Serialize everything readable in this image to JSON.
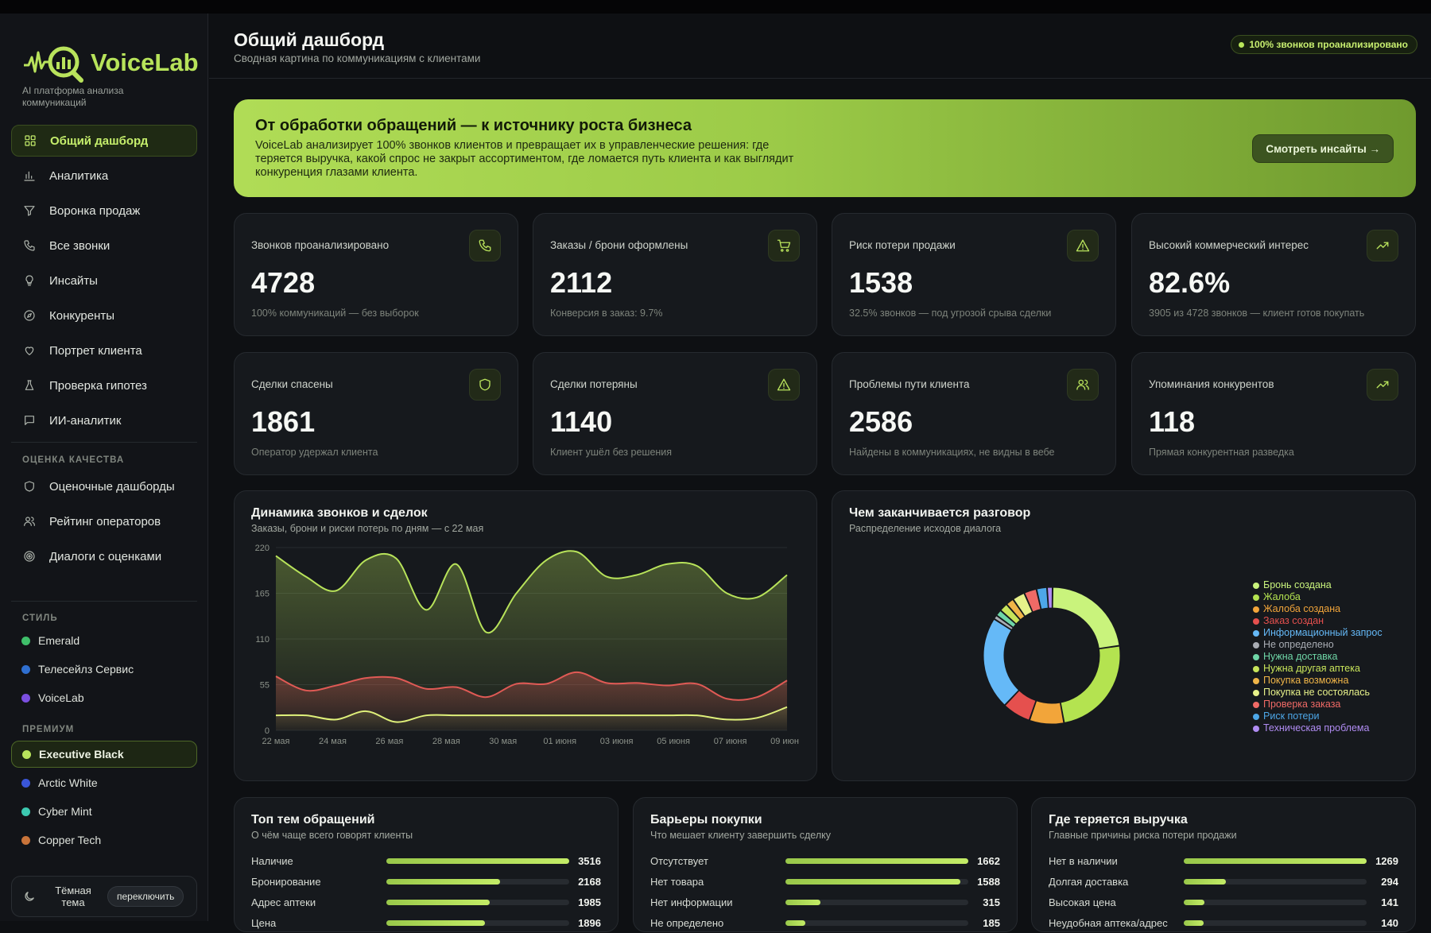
{
  "app": {
    "brand": "VoiceLab",
    "tagline": "AI платформа анализа коммуникаций"
  },
  "nav": [
    {
      "label": "Общий дашборд",
      "icon": "grid-icon",
      "active": true
    },
    {
      "label": "Аналитика",
      "icon": "bar-chart-icon"
    },
    {
      "label": "Воронка продаж",
      "icon": "funnel-icon"
    },
    {
      "label": "Все звонки",
      "icon": "phone-icon"
    },
    {
      "label": "Инсайты",
      "icon": "lightbulb-icon"
    },
    {
      "label": "Конкуренты",
      "icon": "compass-icon"
    },
    {
      "label": "Портрет клиента",
      "icon": "heart-icon"
    },
    {
      "label": "Проверка гипотез",
      "icon": "flask-icon"
    },
    {
      "label": "ИИ-аналитик",
      "icon": "chat-icon"
    }
  ],
  "quality": {
    "label": "ОЦЕНКА КАЧЕСТВА",
    "items": [
      {
        "label": "Оценочные дашборды",
        "icon": "shield-icon"
      },
      {
        "label": "Рейтинг операторов",
        "icon": "users-icon"
      },
      {
        "label": "Диалоги с оценками",
        "icon": "target-icon"
      }
    ]
  },
  "styles": {
    "label": "СТИЛЬ",
    "items": [
      {
        "label": "Emerald",
        "color": "#3fbf6a"
      },
      {
        "label": "Телесейлз Сервис",
        "color": "#2f6fd0"
      },
      {
        "label": "VoiceLab",
        "color": "#7b4fe0"
      }
    ]
  },
  "premium": {
    "label": "ПРЕМИУМ",
    "items": [
      {
        "label": "Executive Black",
        "color": "#b9e35c",
        "active": true
      },
      {
        "label": "Arctic White",
        "color": "#3a56d8"
      },
      {
        "label": "Cyber Mint",
        "color": "#3cc9b0"
      },
      {
        "label": "Copper Tech",
        "color": "#c9743a"
      }
    ]
  },
  "theme": {
    "label": "Тёмная тема",
    "switch": "переключить"
  },
  "header": {
    "title": "Общий дашборд",
    "subtitle": "Сводная картина по коммуникациям с клиентами",
    "badge": "100% звонков проанализировано"
  },
  "hero": {
    "title": "От обработки обращений — к источнику роста бизнеса",
    "text": "VoiceLab анализирует 100% звонков клиентов и превращает их в управленческие решения: где теряется выручка, какой спрос не закрыт ассортиментом, где ломается путь клиента и как выглядит конкуренция глазами клиента.",
    "button": "Смотреть инсайты →"
  },
  "kpis": [
    {
      "label": "Звонков проанализировано",
      "value": "4728",
      "sub": "100% коммуникаций — без выборок",
      "icon": "phone-icon"
    },
    {
      "label": "Заказы / брони оформлены",
      "value": "2112",
      "sub": "Конверсия в заказ: 9.7%",
      "icon": "cart-icon"
    },
    {
      "label": "Риск потери продажи",
      "value": "1538",
      "sub": "32.5% звонков — под угрозой срыва сделки",
      "icon": "warning-icon"
    },
    {
      "label": "Высокий коммерческий интерес",
      "value": "82.6%",
      "sub": "3905 из 4728 звонков — клиент готов покупать",
      "icon": "trend-up-icon"
    },
    {
      "label": "Сделки спасены",
      "value": "1861",
      "sub": "Оператор удержал клиента",
      "icon": "shield-icon"
    },
    {
      "label": "Сделки потеряны",
      "value": "1140",
      "sub": "Клиент ушёл без решения",
      "icon": "warning-icon"
    },
    {
      "label": "Проблемы пути клиента",
      "value": "2586",
      "sub": "Найдены в коммуникациях, не видны в вебе",
      "icon": "users-icon"
    },
    {
      "label": "Упоминания конкурентов",
      "value": "118",
      "sub": "Прямая конкурентная разведка",
      "icon": "trend-up-icon"
    }
  ],
  "line_chart": {
    "title": "Динамика звонков и сделок",
    "subtitle": "Заказы, брони и риски потерь по дням — с 22 мая"
  },
  "donut_chart": {
    "title": "Чем заканчивается разговор",
    "subtitle": "Распределение исходов диалога"
  },
  "chart_data": [
    {
      "type": "area",
      "x_ticks": [
        "22 мая",
        "24 мая",
        "26 мая",
        "28 мая",
        "30 мая",
        "01 июня",
        "03 июня",
        "05 июня",
        "07 июня",
        "09 июня"
      ],
      "y_ticks": [
        0,
        55,
        110,
        165,
        220
      ],
      "ylim": [
        0,
        220
      ],
      "series": [
        {
          "color": "#b8e35a",
          "values": [
            210,
            185,
            168,
            205,
            207,
            145,
            200,
            118,
            165,
            205,
            215,
            185,
            187,
            200,
            198,
            165,
            160,
            187
          ]
        },
        {
          "color": "#e05a55",
          "values": [
            65,
            48,
            54,
            63,
            63,
            50,
            52,
            40,
            56,
            56,
            70,
            57,
            57,
            54,
            56,
            38,
            40,
            60
          ]
        },
        {
          "color": "#dff07a",
          "values": [
            18,
            18,
            13,
            23,
            10,
            18,
            18,
            18,
            18,
            18,
            18,
            18,
            18,
            18,
            18,
            13,
            15,
            28
          ]
        }
      ]
    },
    {
      "type": "pie",
      "donut": true,
      "categories": [
        "Бронь создана",
        "Жалоба",
        "Жалоба создана",
        "Заказ создан",
        "Информационный запрос",
        "Не определено",
        "Нужна доставка",
        "Нужна другая аптека",
        "Покупка возможна",
        "Покупка не состоялась",
        "Проверка заказа",
        "Риск потери",
        "Техническая проблема"
      ],
      "values": [
        1063,
        1156,
        387,
        319,
        1039,
        47,
        71,
        94,
        90,
        141,
        141,
        118,
        62
      ],
      "colors": [
        "#c9f37c",
        "#b4e350",
        "#f2a53a",
        "#e5504e",
        "#65b9f7",
        "#a9adb4",
        "#6fd6a7",
        "#c8e45a",
        "#f0b548",
        "#e7f18a",
        "#f06a66",
        "#4da7e8",
        "#b08cf2"
      ]
    }
  ],
  "top_topics": {
    "title": "Топ тем обращений",
    "subtitle": "О чём чаще всего говорят клиенты",
    "rows": [
      {
        "label": "Наличие",
        "value": "3516",
        "frac": 1.0
      },
      {
        "label": "Бронирование",
        "value": "2168",
        "frac": 0.62
      },
      {
        "label": "Адрес аптеки",
        "value": "1985",
        "frac": 0.565
      },
      {
        "label": "Цена",
        "value": "1896",
        "frac": 0.54
      }
    ]
  },
  "barriers": {
    "title": "Барьеры покупки",
    "subtitle": "Что мешает клиенту завершить сделку",
    "rows": [
      {
        "label": "Отсутствует",
        "value": "1662",
        "frac": 1.0
      },
      {
        "label": "Нет товара",
        "value": "1588",
        "frac": 0.955
      },
      {
        "label": "Нет информации",
        "value": "315",
        "frac": 0.19
      },
      {
        "label": "Не определено",
        "value": "185",
        "frac": 0.11
      }
    ]
  },
  "revenue": {
    "title": "Где теряется выручка",
    "subtitle": "Главные причины риска потери продажи",
    "rows": [
      {
        "label": "Нет в наличии",
        "value": "1269",
        "frac": 1.0
      },
      {
        "label": "Долгая доставка",
        "value": "294",
        "frac": 0.232
      },
      {
        "label": "Высокая цена",
        "value": "141",
        "frac": 0.111
      },
      {
        "label": "Неудобная аптека/адрес",
        "value": "140",
        "frac": 0.11
      }
    ]
  }
}
